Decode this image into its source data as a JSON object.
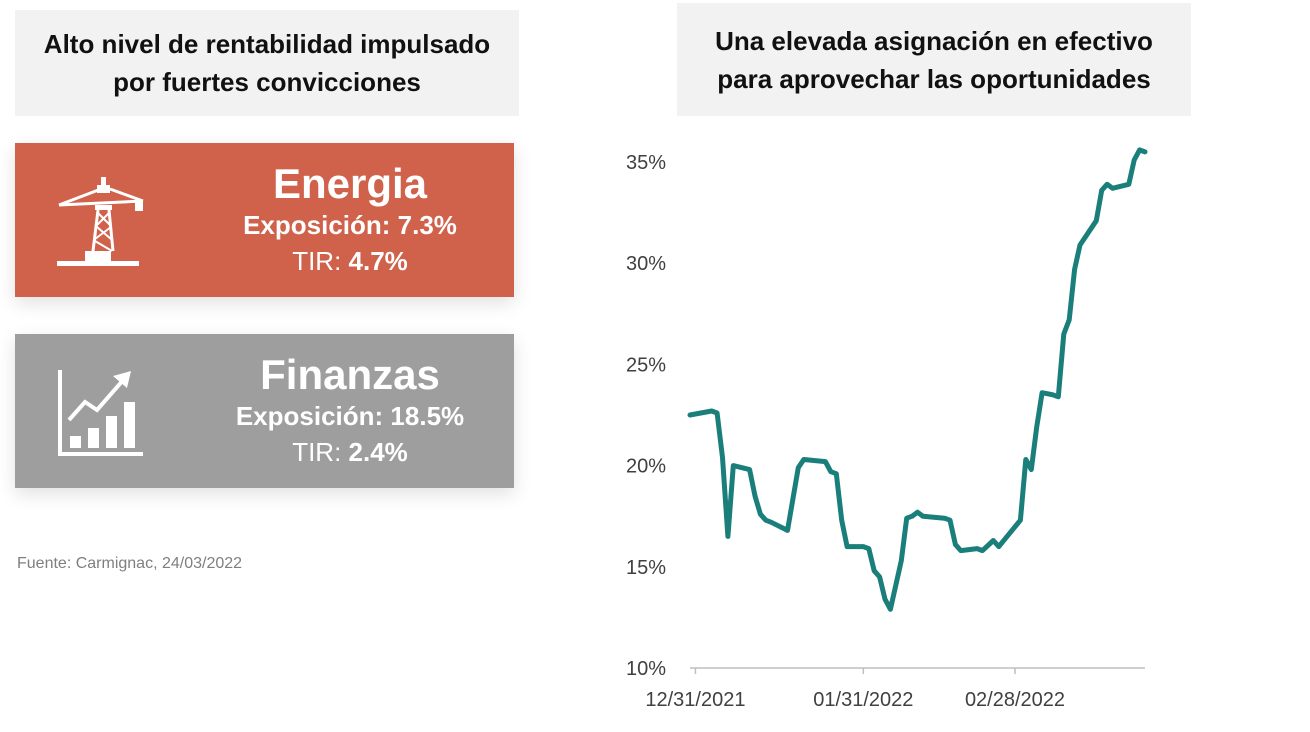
{
  "left_panel": {
    "title_line1": "Alto nivel de rentabilidad impulsado",
    "title_line2": "por fuertes convicciones",
    "cards": [
      {
        "name": "Energia",
        "exposure_label": "Exposición: 7.3%",
        "tir_label": "TIR: ",
        "tir_value": "4.7%",
        "color": "#d0614a",
        "icon": "oil-rig-icon"
      },
      {
        "name": "Finanzas",
        "exposure_label": "Exposición: 18.5%",
        "tir_label": "TIR: ",
        "tir_value": "2.4%",
        "color": "#9e9e9e",
        "icon": "growth-chart-icon"
      }
    ],
    "source": "Fuente: Carmignac, 24/03/2022"
  },
  "right_panel": {
    "title_line1": "Una elevada asignación en efectivo",
    "title_line2": "para aprovechar las oportunidades"
  },
  "chart_data": {
    "type": "line",
    "title": "Una elevada asignación en efectivo para aprovechar las oportunidades",
    "xlabel": "",
    "ylabel": "",
    "ylim": [
      10,
      35
    ],
    "xlim": [
      "2021-12-30",
      "2022-03-24"
    ],
    "yticks": [
      "10%",
      "15%",
      "20%",
      "25%",
      "30%",
      "35%"
    ],
    "xticks": [
      {
        "date": "2021-12-31",
        "label": "12/31/2021"
      },
      {
        "date": "2022-01-31",
        "label": "01/31/2022"
      },
      {
        "date": "2022-02-28",
        "label": "02/28/2022"
      }
    ],
    "grid": false,
    "color": "#1a7f7a",
    "series": [
      {
        "name": "",
        "points": [
          [
            "2021-12-30",
            22.5
          ],
          [
            "2022-01-03",
            22.7
          ],
          [
            "2022-01-04",
            22.6
          ],
          [
            "2022-01-05",
            20.4
          ],
          [
            "2022-01-06",
            16.5
          ],
          [
            "2022-01-07",
            20.0
          ],
          [
            "2022-01-10",
            19.8
          ],
          [
            "2022-01-11",
            18.5
          ],
          [
            "2022-01-12",
            17.6
          ],
          [
            "2022-01-13",
            17.3
          ],
          [
            "2022-01-14",
            17.2
          ],
          [
            "2022-01-17",
            16.8
          ],
          [
            "2022-01-19",
            19.9
          ],
          [
            "2022-01-20",
            20.3
          ],
          [
            "2022-01-24",
            20.2
          ],
          [
            "2022-01-25",
            19.7
          ],
          [
            "2022-01-26",
            19.6
          ],
          [
            "2022-01-27",
            17.3
          ],
          [
            "2022-01-28",
            16.0
          ],
          [
            "2022-01-31",
            16.0
          ],
          [
            "2022-02-01",
            15.9
          ],
          [
            "2022-02-02",
            14.8
          ],
          [
            "2022-02-03",
            14.5
          ],
          [
            "2022-02-04",
            13.4
          ],
          [
            "2022-02-05",
            12.9
          ],
          [
            "2022-02-07",
            15.3
          ],
          [
            "2022-02-08",
            17.4
          ],
          [
            "2022-02-09",
            17.5
          ],
          [
            "2022-02-10",
            17.7
          ],
          [
            "2022-02-11",
            17.5
          ],
          [
            "2022-02-15",
            17.4
          ],
          [
            "2022-02-16",
            17.3
          ],
          [
            "2022-02-17",
            16.1
          ],
          [
            "2022-02-18",
            15.8
          ],
          [
            "2022-02-21",
            15.9
          ],
          [
            "2022-02-22",
            15.8
          ],
          [
            "2022-02-24",
            16.3
          ],
          [
            "2022-02-25",
            16.0
          ],
          [
            "2022-03-01",
            17.3
          ],
          [
            "2022-03-02",
            20.3
          ],
          [
            "2022-03-03",
            19.8
          ],
          [
            "2022-03-04",
            21.9
          ],
          [
            "2022-03-05",
            23.6
          ],
          [
            "2022-03-07",
            23.5
          ],
          [
            "2022-03-08",
            23.4
          ],
          [
            "2022-03-09",
            26.5
          ],
          [
            "2022-03-10",
            27.2
          ],
          [
            "2022-03-11",
            29.7
          ],
          [
            "2022-03-12",
            30.9
          ],
          [
            "2022-03-15",
            32.1
          ],
          [
            "2022-03-16",
            33.6
          ],
          [
            "2022-03-17",
            33.9
          ],
          [
            "2022-03-18",
            33.7
          ],
          [
            "2022-03-21",
            33.9
          ],
          [
            "2022-03-22",
            35.1
          ],
          [
            "2022-03-23",
            35.6
          ],
          [
            "2022-03-24",
            35.5
          ]
        ]
      }
    ]
  }
}
